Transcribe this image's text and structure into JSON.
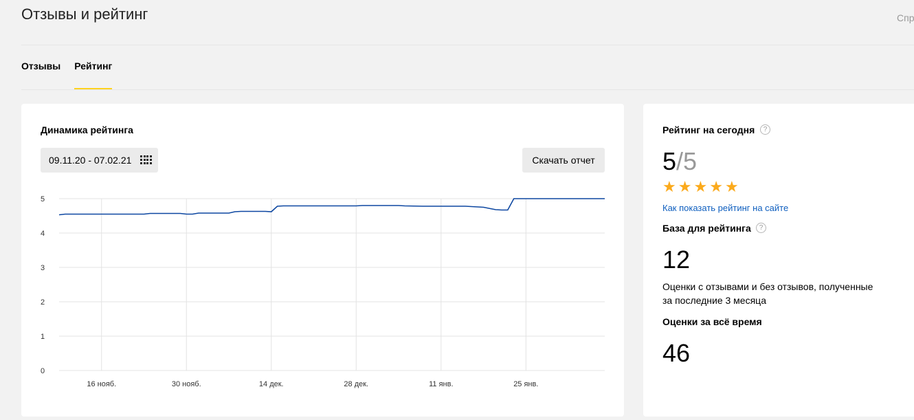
{
  "header": {
    "title": "Отзывы и рейтинг",
    "help_label": "Спр"
  },
  "tabs": [
    {
      "label": "Отзывы",
      "active": false
    },
    {
      "label": "Рейтинг",
      "active": true
    }
  ],
  "chart_card": {
    "title": "Динамика рейтинга",
    "date_range": "09.11.20 - 07.02.21",
    "download_label": "Скачать отчет"
  },
  "chart_data": {
    "type": "line",
    "ylim": [
      0,
      5
    ],
    "y_ticks": [
      "0",
      "1",
      "2",
      "3",
      "4",
      "5"
    ],
    "x_ticks": [
      "16 нояб.",
      "30 нояб.",
      "14 дек.",
      "28 дек.",
      "11 янв.",
      "25 янв."
    ],
    "x_tick_days": [
      7,
      21,
      35,
      49,
      63,
      77
    ],
    "x_domain_days": [
      0,
      90
    ],
    "x_start_date": "09.11.20",
    "x_end_date": "07.02.21",
    "grid": true,
    "series": [
      {
        "color": "#0d47a1",
        "points": [
          [
            0,
            4.53
          ],
          [
            1,
            4.55
          ],
          [
            7,
            4.55
          ],
          [
            14,
            4.55
          ],
          [
            15,
            4.57
          ],
          [
            20,
            4.57
          ],
          [
            21,
            4.55
          ],
          [
            22,
            4.55
          ],
          [
            23,
            4.58
          ],
          [
            28,
            4.58
          ],
          [
            29,
            4.62
          ],
          [
            30,
            4.63
          ],
          [
            34,
            4.63
          ],
          [
            35,
            4.62
          ],
          [
            36,
            4.78
          ],
          [
            37,
            4.79
          ],
          [
            49,
            4.79
          ],
          [
            50,
            4.8
          ],
          [
            56,
            4.8
          ],
          [
            57,
            4.79
          ],
          [
            60,
            4.78
          ],
          [
            67,
            4.78
          ],
          [
            70,
            4.75
          ],
          [
            72,
            4.68
          ],
          [
            73,
            4.67
          ],
          [
            74,
            4.67
          ],
          [
            75,
            5.0
          ],
          [
            90,
            5.0
          ]
        ]
      }
    ]
  },
  "rating_card": {
    "today_title": "Рейтинг на сегодня",
    "help_icon": "?",
    "rating_value": "5",
    "rating_max": "/5",
    "stars": 5,
    "show_link": "Как показать рейтинг на сайте",
    "base_title": "База для рейтинга",
    "base_value": "12",
    "base_desc": "Оценки с отзывами и без отзывов, полученные за последние 3 месяца",
    "alltime_title": "Оценки за всё время",
    "alltime_value": "46"
  },
  "colors": {
    "accent": "#ffd21e",
    "star": "#fbaa1c",
    "link": "#0f5fbf",
    "line": "#0d47a1"
  }
}
